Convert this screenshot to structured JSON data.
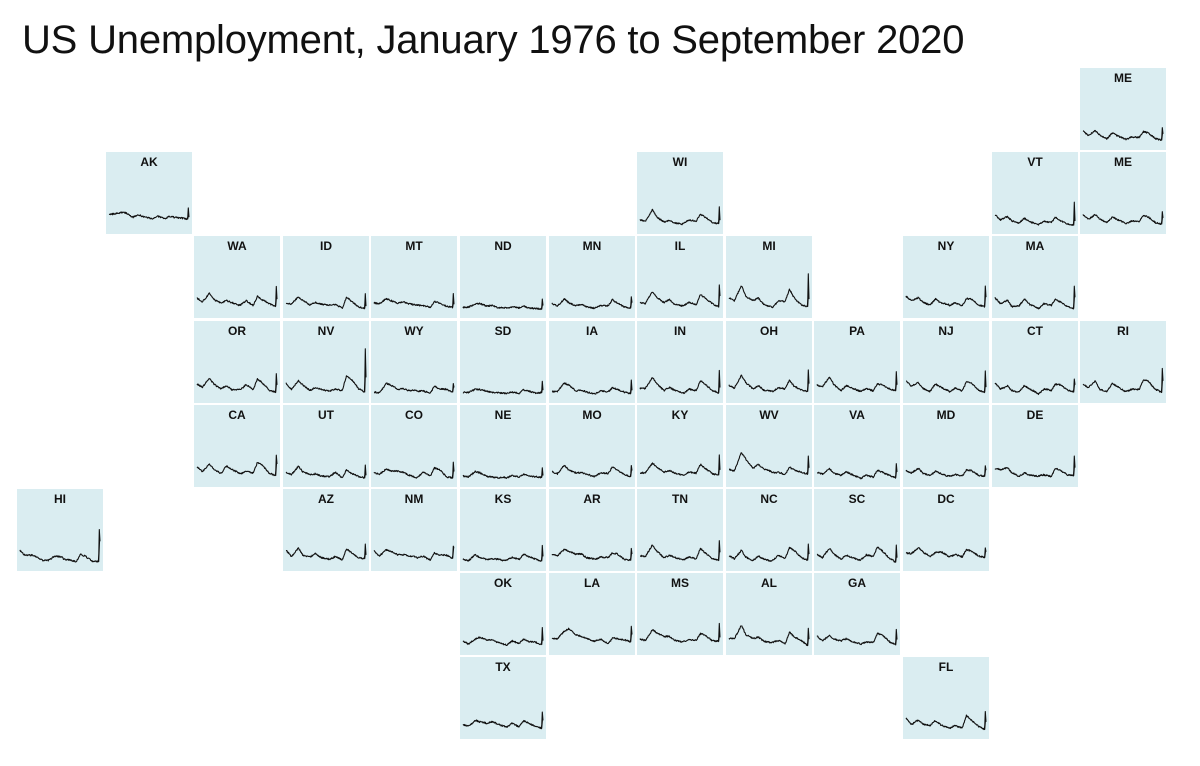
{
  "title": "US Unemployment, January 1976 to September 2020",
  "colors": {
    "tile_fill": "#daedf1",
    "line": "#111111",
    "background": "#ffffff"
  },
  "chart_data": {
    "type": "line",
    "layout": "state-tile-grid-map",
    "x_range": [
      "1976-01",
      "2020-09"
    ],
    "y_range_percent": [
      0,
      30
    ],
    "x_labels_shown": false,
    "y_labels_shown": false,
    "grid": false,
    "legend": "none",
    "key_x": [
      "1976-01",
      "1979-01",
      "1982-12",
      "1985-06",
      "1989-06",
      "1992-06",
      "1995-06",
      "1999-06",
      "2000-06",
      "2003-06",
      "2007-06",
      "2009-10",
      "2012-06",
      "2016-06",
      "2019-12",
      "2020-04",
      "2020-09"
    ],
    "tiles": [
      {
        "label": "ME",
        "row": 0,
        "col": 12,
        "values": [
          8.8,
          5.9,
          8.8,
          6.0,
          3.8,
          7.4,
          5.6,
          3.8,
          3.4,
          5.0,
          4.6,
          8.2,
          7.4,
          3.9,
          3.0,
          10.6,
          6.8
        ]
      },
      {
        "label": "AK",
        "row": 1,
        "col": 1,
        "values": [
          9.0,
          9.2,
          10.2,
          9.8,
          7.2,
          8.8,
          7.4,
          6.4,
          6.2,
          7.8,
          6.2,
          7.8,
          7.2,
          6.7,
          6.1,
          12.9,
          7.2
        ]
      },
      {
        "label": "WI",
        "row": 1,
        "col": 7,
        "values": [
          5.6,
          4.8,
          11.8,
          7.2,
          4.3,
          5.2,
          3.6,
          3.0,
          3.4,
          5.6,
          4.8,
          9.2,
          7.2,
          4.1,
          3.3,
          13.6,
          5.4
        ]
      },
      {
        "label": "VT",
        "row": 1,
        "col": 11,
        "values": [
          8.6,
          5.6,
          7.6,
          5.0,
          3.7,
          6.6,
          4.5,
          2.9,
          2.7,
          4.6,
          4.0,
          7.2,
          5.2,
          3.2,
          2.3,
          16.4,
          4.9
        ]
      },
      {
        "label": "ME",
        "row": 1,
        "col": 12,
        "values": [
          8.8,
          5.9,
          8.8,
          6.0,
          3.8,
          7.4,
          5.6,
          3.8,
          3.4,
          5.0,
          4.6,
          8.2,
          7.4,
          3.9,
          3.0,
          10.6,
          6.8
        ]
      },
      {
        "label": "WA",
        "row": 2,
        "col": 2,
        "values": [
          9.2,
          6.8,
          12.0,
          8.2,
          6.2,
          7.6,
          6.4,
          4.8,
          5.0,
          7.6,
          4.6,
          10.2,
          8.2,
          5.6,
          4.2,
          16.3,
          8.5
        ]
      },
      {
        "label": "ID",
        "row": 2,
        "col": 3,
        "values": [
          6.2,
          5.6,
          9.8,
          7.8,
          5.0,
          6.4,
          5.4,
          4.8,
          4.8,
          5.4,
          3.0,
          9.6,
          7.4,
          3.8,
          2.9,
          11.8,
          4.2
        ]
      },
      {
        "label": "MT",
        "row": 2,
        "col": 4,
        "values": [
          6.2,
          5.6,
          8.8,
          7.6,
          5.8,
          6.8,
          5.6,
          5.0,
          4.8,
          4.4,
          3.6,
          7.2,
          6.2,
          4.2,
          3.5,
          11.9,
          5.3
        ]
      },
      {
        "label": "ND",
        "row": 2,
        "col": 5,
        "values": [
          3.4,
          3.6,
          5.6,
          5.8,
          4.2,
          4.8,
          3.4,
          3.2,
          3.0,
          3.8,
          3.2,
          4.4,
          3.0,
          2.8,
          2.4,
          8.5,
          4.6
        ]
      },
      {
        "label": "MN",
        "row": 2,
        "col": 6,
        "values": [
          5.8,
          4.2,
          8.6,
          6.2,
          4.4,
          5.2,
          3.8,
          3.0,
          3.2,
          4.6,
          4.4,
          8.2,
          6.0,
          3.8,
          3.1,
          9.9,
          6.3
        ]
      },
      {
        "label": "IL",
        "row": 2,
        "col": 7,
        "values": [
          6.4,
          5.8,
          13.2,
          9.4,
          6.4,
          8.2,
          5.2,
          4.4,
          4.4,
          6.6,
          5.0,
          11.2,
          9.0,
          5.8,
          3.6,
          17.2,
          10.4
        ]
      },
      {
        "label": "MI",
        "row": 2,
        "col": 8,
        "values": [
          9.4,
          7.4,
          16.8,
          10.2,
          7.6,
          9.2,
          5.2,
          3.8,
          3.6,
          7.2,
          7.2,
          14.6,
          9.2,
          4.8,
          4.0,
          24.0,
          8.5
        ]
      },
      {
        "label": "NY",
        "row": 2,
        "col": 10,
        "values": [
          10.2,
          7.6,
          9.4,
          6.6,
          4.8,
          8.6,
          6.2,
          5.4,
          4.6,
          6.4,
          4.4,
          8.8,
          8.6,
          4.8,
          3.9,
          16.5,
          9.7
        ]
      },
      {
        "label": "MA",
        "row": 2,
        "col": 11,
        "values": [
          9.4,
          5.6,
          8.0,
          3.8,
          4.4,
          8.6,
          5.2,
          3.2,
          2.8,
          5.8,
          4.6,
          8.6,
          6.8,
          3.8,
          2.9,
          16.4,
          9.6
        ]
      },
      {
        "label": "OR",
        "row": 3,
        "col": 2,
        "values": [
          8.6,
          6.6,
          12.2,
          8.4,
          5.6,
          7.6,
          5.0,
          5.4,
          5.2,
          8.2,
          5.2,
          11.8,
          9.4,
          4.8,
          3.5,
          14.9,
          8.0
        ]
      },
      {
        "label": "NV",
        "row": 3,
        "col": 3,
        "values": [
          9.0,
          5.2,
          10.6,
          8.0,
          4.6,
          6.6,
          5.4,
          4.4,
          4.4,
          5.4,
          4.6,
          13.6,
          11.6,
          5.8,
          3.6,
          30.1,
          12.6
        ]
      },
      {
        "label": "WY",
        "row": 3,
        "col": 4,
        "values": [
          3.6,
          3.2,
          9.0,
          7.8,
          5.4,
          5.6,
          4.6,
          4.8,
          4.0,
          4.4,
          2.8,
          7.4,
          5.6,
          5.4,
          3.7,
          8.8,
          6.4
        ]
      },
      {
        "label": "SD",
        "row": 3,
        "col": 5,
        "values": [
          3.4,
          3.4,
          5.4,
          5.2,
          4.2,
          3.4,
          3.2,
          3.0,
          2.8,
          3.6,
          2.8,
          5.0,
          4.4,
          3.0,
          3.3,
          10.2,
          4.8
        ]
      },
      {
        "label": "IA",
        "row": 3,
        "col": 6,
        "values": [
          4.0,
          4.0,
          9.2,
          7.8,
          4.4,
          4.8,
          3.6,
          2.6,
          2.8,
          4.4,
          3.8,
          6.4,
          5.2,
          3.6,
          2.8,
          11.0,
          4.7
        ]
      },
      {
        "label": "IN",
        "row": 3,
        "col": 7,
        "values": [
          6.0,
          5.8,
          12.6,
          8.6,
          4.6,
          6.4,
          4.8,
          3.0,
          3.0,
          5.4,
          4.6,
          10.6,
          8.4,
          4.4,
          3.2,
          16.9,
          6.4
        ]
      },
      {
        "label": "OH",
        "row": 3,
        "col": 8,
        "values": [
          7.8,
          6.0,
          14.0,
          9.4,
          5.6,
          7.6,
          4.8,
          4.2,
          4.0,
          6.2,
          5.6,
          11.0,
          7.2,
          5.0,
          4.1,
          17.2,
          8.8
        ]
      },
      {
        "label": "PA",
        "row": 3,
        "col": 9,
        "values": [
          8.0,
          6.8,
          12.8,
          8.2,
          4.6,
          7.6,
          6.2,
          4.4,
          4.2,
          5.8,
          4.4,
          8.6,
          8.0,
          5.6,
          4.5,
          16.1,
          8.1
        ]
      },
      {
        "label": "NJ",
        "row": 3,
        "col": 10,
        "values": [
          10.4,
          7.2,
          9.4,
          6.0,
          4.0,
          8.6,
          6.6,
          4.6,
          3.8,
          6.0,
          4.4,
          9.8,
          9.4,
          4.8,
          3.6,
          16.6,
          6.7
        ]
      },
      {
        "label": "CT",
        "row": 3,
        "col": 11,
        "values": [
          9.4,
          5.4,
          7.4,
          4.6,
          3.6,
          7.6,
          5.6,
          3.2,
          2.4,
          5.6,
          4.6,
          8.4,
          8.2,
          4.8,
          3.6,
          11.6,
          8.1
        ]
      },
      {
        "label": "RI",
        "row": 3,
        "col": 12,
        "values": [
          8.2,
          6.4,
          10.4,
          5.2,
          3.8,
          9.0,
          6.8,
          4.2,
          4.2,
          5.4,
          5.2,
          11.2,
          10.2,
          5.4,
          3.4,
          18.1,
          10.5
        ]
      },
      {
        "label": "CA",
        "row": 4,
        "col": 2,
        "values": [
          9.2,
          6.4,
          10.8,
          7.8,
          5.2,
          9.8,
          7.8,
          5.6,
          5.0,
          6.8,
          5.4,
          12.2,
          10.4,
          5.4,
          3.9,
          16.4,
          11.0
        ]
      },
      {
        "label": "UT",
        "row": 4,
        "col": 3,
        "values": [
          5.8,
          4.4,
          9.6,
          6.2,
          4.6,
          5.0,
          3.6,
          3.4,
          3.2,
          6.0,
          2.6,
          7.4,
          5.4,
          3.4,
          2.5,
          10.4,
          4.1
        ]
      },
      {
        "label": "CO",
        "row": 4,
        "col": 4,
        "values": [
          5.6,
          4.8,
          8.0,
          6.8,
          6.6,
          5.8,
          4.2,
          2.8,
          2.8,
          6.0,
          3.8,
          8.6,
          7.8,
          3.2,
          2.5,
          12.1,
          6.4
        ]
      },
      {
        "label": "NE",
        "row": 4,
        "col": 5,
        "values": [
          3.6,
          3.2,
          6.4,
          5.6,
          3.4,
          3.0,
          2.6,
          2.8,
          2.6,
          3.8,
          3.0,
          4.8,
          4.0,
          3.2,
          2.9,
          8.7,
          4.0
        ]
      },
      {
        "label": "MO",
        "row": 4,
        "col": 6,
        "values": [
          6.4,
          5.0,
          10.2,
          7.2,
          5.6,
          5.8,
          4.8,
          3.4,
          3.6,
          5.8,
          5.2,
          9.4,
          7.2,
          4.6,
          3.4,
          10.1,
          7.0
        ]
      },
      {
        "label": "KY",
        "row": 4,
        "col": 7,
        "values": [
          5.6,
          5.6,
          11.6,
          9.0,
          6.0,
          7.0,
          5.4,
          4.4,
          4.2,
          6.0,
          5.4,
          10.8,
          8.4,
          5.0,
          4.3,
          16.6,
          7.4
        ]
      },
      {
        "label": "WV",
        "row": 4,
        "col": 8,
        "values": [
          7.6,
          6.8,
          18.0,
          14.0,
          8.4,
          10.8,
          7.8,
          6.6,
          5.6,
          6.0,
          4.6,
          9.0,
          7.4,
          6.0,
          4.9,
          15.9,
          8.7
        ]
      },
      {
        "label": "VA",
        "row": 4,
        "col": 9,
        "values": [
          6.0,
          4.8,
          8.2,
          5.4,
          4.0,
          6.4,
          4.6,
          2.8,
          2.2,
          4.2,
          3.0,
          7.2,
          6.0,
          4.0,
          2.6,
          11.2,
          6.2
        ]
      },
      {
        "label": "MD",
        "row": 4,
        "col": 10,
        "values": [
          6.8,
          5.6,
          8.4,
          5.4,
          3.8,
          6.6,
          5.2,
          3.6,
          3.6,
          4.6,
          3.6,
          7.4,
          7.0,
          4.2,
          3.5,
          9.9,
          7.2
        ]
      },
      {
        "label": "DE",
        "row": 4,
        "col": 11,
        "values": [
          8.4,
          7.6,
          8.6,
          5.8,
          3.4,
          5.6,
          4.2,
          3.6,
          3.8,
          4.4,
          3.4,
          8.4,
          7.2,
          4.4,
          3.9,
          15.9,
          8.8
        ]
      },
      {
        "label": "HI",
        "row": 5,
        "col": 0,
        "values": [
          9.6,
          6.4,
          6.8,
          5.2,
          3.2,
          3.6,
          6.2,
          5.4,
          4.2,
          3.8,
          2.6,
          7.2,
          6.0,
          3.0,
          2.7,
          22.3,
          15.1
        ]
      },
      {
        "label": "AZ",
        "row": 5,
        "col": 3,
        "values": [
          9.8,
          5.8,
          11.0,
          6.6,
          5.6,
          7.6,
          5.2,
          4.4,
          4.0,
          5.8,
          3.8,
          10.6,
          8.2,
          5.2,
          4.5,
          13.4,
          6.8
        ]
      },
      {
        "label": "NM",
        "row": 5,
        "col": 4,
        "values": [
          9.2,
          6.2,
          10.0,
          9.0,
          6.8,
          7.0,
          6.2,
          5.6,
          5.0,
          6.0,
          3.6,
          8.0,
          6.8,
          6.6,
          4.8,
          12.1,
          11.3
        ]
      },
      {
        "label": "KS",
        "row": 5,
        "col": 5,
        "values": [
          4.2,
          3.2,
          7.0,
          5.0,
          4.0,
          4.4,
          4.2,
          3.2,
          3.6,
          5.4,
          4.0,
          7.2,
          6.0,
          4.2,
          3.1,
          12.6,
          5.9
        ]
      },
      {
        "label": "AR",
        "row": 5,
        "col": 6,
        "values": [
          7.0,
          6.2,
          10.2,
          8.8,
          7.2,
          7.4,
          5.0,
          4.4,
          4.2,
          5.6,
          5.2,
          8.0,
          7.4,
          4.0,
          3.5,
          10.8,
          7.3
        ]
      },
      {
        "label": "TN",
        "row": 5,
        "col": 7,
        "values": [
          6.4,
          5.8,
          12.8,
          9.2,
          5.0,
          6.6,
          5.2,
          4.0,
          3.8,
          5.6,
          4.4,
          10.8,
          8.0,
          4.6,
          3.3,
          15.5,
          8.4
        ]
      },
      {
        "label": "NC",
        "row": 5,
        "col": 8,
        "values": [
          6.4,
          4.4,
          9.6,
          5.4,
          3.4,
          6.0,
          4.4,
          3.0,
          3.4,
          6.6,
          4.6,
          11.2,
          9.6,
          5.0,
          3.6,
          13.5,
          7.3
        ]
      },
      {
        "label": "SC",
        "row": 5,
        "col": 9,
        "values": [
          7.2,
          5.0,
          11.0,
          7.2,
          4.2,
          6.6,
          5.2,
          3.8,
          3.6,
          6.8,
          5.8,
          11.8,
          9.2,
          4.8,
          2.4,
          12.8,
          5.1
        ]
      },
      {
        "label": "DC",
        "row": 5,
        "col": 10,
        "values": [
          8.0,
          7.6,
          11.2,
          8.6,
          5.8,
          8.2,
          8.8,
          6.2,
          5.8,
          7.0,
          5.6,
          10.0,
          9.2,
          6.2,
          5.2,
          11.1,
          8.7
        ]
      },
      {
        "label": "OK",
        "row": 6,
        "col": 5,
        "values": [
          5.6,
          3.6,
          6.8,
          7.8,
          6.0,
          6.2,
          4.6,
          3.4,
          3.0,
          5.6,
          4.0,
          6.8,
          5.2,
          4.8,
          3.3,
          13.8,
          5.7
        ]
      },
      {
        "label": "LA",
        "row": 6,
        "col": 6,
        "values": [
          7.2,
          6.8,
          11.6,
          13.0,
          9.2,
          8.2,
          7.2,
          5.4,
          5.8,
          6.4,
          3.8,
          7.4,
          7.0,
          6.2,
          5.0,
          14.5,
          9.5
        ]
      },
      {
        "label": "MS",
        "row": 6,
        "col": 7,
        "values": [
          6.8,
          5.8,
          12.4,
          10.6,
          8.4,
          8.2,
          6.0,
          5.0,
          5.2,
          6.2,
          6.0,
          10.0,
          9.0,
          5.6,
          5.4,
          16.3,
          7.7
        ]
      },
      {
        "label": "AL",
        "row": 6,
        "col": 8,
        "values": [
          7.2,
          6.8,
          15.2,
          9.4,
          7.0,
          7.8,
          5.4,
          4.6,
          4.6,
          5.8,
          4.0,
          11.0,
          8.0,
          5.8,
          2.7,
          13.3,
          6.7
        ]
      },
      {
        "label": "GA",
        "row": 6,
        "col": 9,
        "values": [
          8.6,
          5.6,
          8.8,
          6.6,
          5.6,
          7.0,
          5.0,
          4.0,
          3.6,
          4.8,
          4.6,
          10.4,
          9.0,
          5.2,
          3.1,
          12.6,
          6.4
        ]
      },
      {
        "label": "TX",
        "row": 7,
        "col": 5,
        "values": [
          5.8,
          4.6,
          8.4,
          7.4,
          6.6,
          7.6,
          6.0,
          4.6,
          4.2,
          6.6,
          4.4,
          8.2,
          6.8,
          4.6,
          3.5,
          13.5,
          8.3
        ]
      },
      {
        "label": "FL",
        "row": 7,
        "col": 10,
        "values": [
          9.6,
          5.8,
          8.6,
          6.0,
          5.2,
          8.2,
          5.6,
          3.8,
          3.6,
          5.2,
          3.8,
          11.2,
          8.6,
          4.8,
          2.8,
          13.8,
          7.4
        ]
      }
    ]
  }
}
